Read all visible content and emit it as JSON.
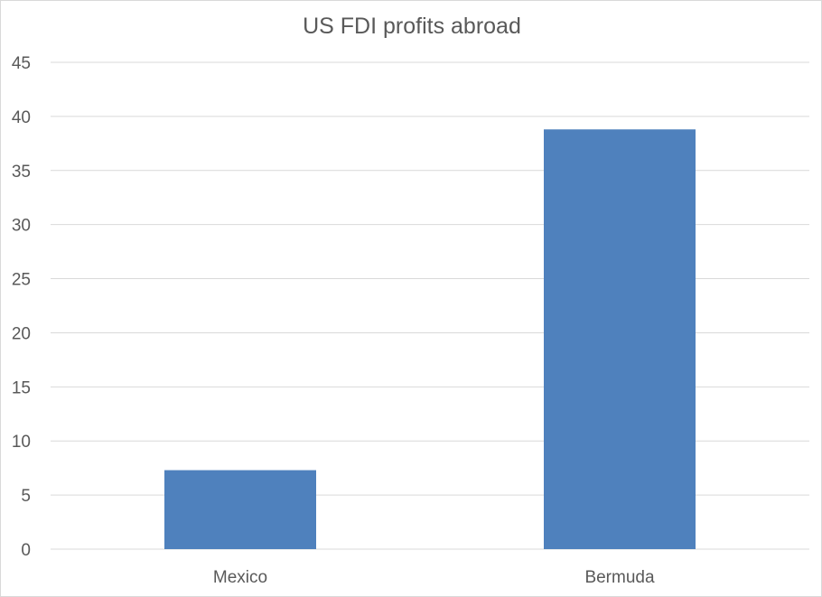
{
  "chart_data": {
    "type": "bar",
    "title": "US FDI profits abroad",
    "xlabel": "",
    "ylabel": "",
    "categories": [
      "Mexico",
      "Bermuda"
    ],
    "series": [
      {
        "values": [
          7.3,
          38.8
        ]
      }
    ],
    "ylim": [
      0,
      45
    ],
    "yticks": [
      0,
      5,
      10,
      15,
      20,
      25,
      30,
      35,
      40,
      45
    ],
    "ytick_labels": [
      "0",
      "5",
      "10",
      "15",
      "20",
      "25",
      "30",
      "35",
      "40",
      "45"
    ],
    "grid": true,
    "legend": "none",
    "bar_color": "#4f81bd"
  }
}
